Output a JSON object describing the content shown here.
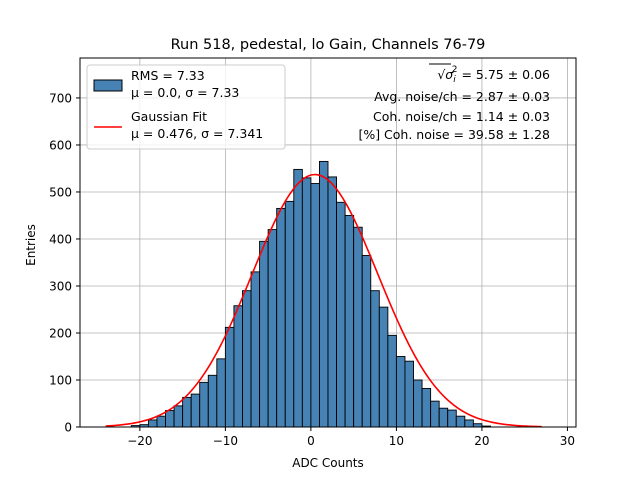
{
  "chart_data": {
    "type": "bar",
    "title": "Run 518, pedestal, lo Gain, Channels 76-79",
    "xlabel": "ADC Counts",
    "ylabel": "Entries",
    "xlim": [
      -27,
      31
    ],
    "ylim": [
      0,
      785
    ],
    "xticks": [
      -20,
      -10,
      0,
      10,
      20,
      30
    ],
    "yticks": [
      0,
      100,
      200,
      300,
      400,
      500,
      600,
      700
    ],
    "grid": true,
    "legend_placement": "top-left",
    "bin_width": 1,
    "bin_start": -21,
    "values": [
      3,
      5,
      15,
      23,
      35,
      45,
      63,
      70,
      95,
      110,
      145,
      212,
      258,
      290,
      330,
      395,
      420,
      465,
      480,
      548,
      530,
      518,
      565,
      532,
      478,
      450,
      425,
      365,
      290,
      255,
      195,
      150,
      140,
      100,
      82,
      55,
      40,
      36,
      23,
      15,
      7,
      2
    ],
    "colors": {
      "bar_fill": "#4682b4",
      "bar_edge": "#000000",
      "fit_line": "#ff0000",
      "grid": "#b0b0b0"
    },
    "series": [
      {
        "name": "RMS = 7.33",
        "name_line2": "μ = 0.0, σ = 7.33",
        "kind": "histogram"
      },
      {
        "name": "Gaussian Fit",
        "name_line2": "μ = 0.476, σ = 7.341",
        "kind": "line",
        "fit": {
          "mu": 0.476,
          "sigma": 7.341,
          "amplitude": 537,
          "x_range": [
            -24,
            27
          ]
        }
      }
    ],
    "annotations": [
      {
        "prefix": "√",
        "var": "σ",
        "sub": "i",
        "sup": "2",
        "suffix": " = 5.75 ± 0.06"
      },
      {
        "text": "Avg. noise/ch = 2.87 ± 0.03"
      },
      {
        "text": "Coh. noise/ch = 1.14 ± 0.03"
      },
      {
        "text": "[%] Coh. noise = 39.58 ± 1.28"
      }
    ]
  }
}
